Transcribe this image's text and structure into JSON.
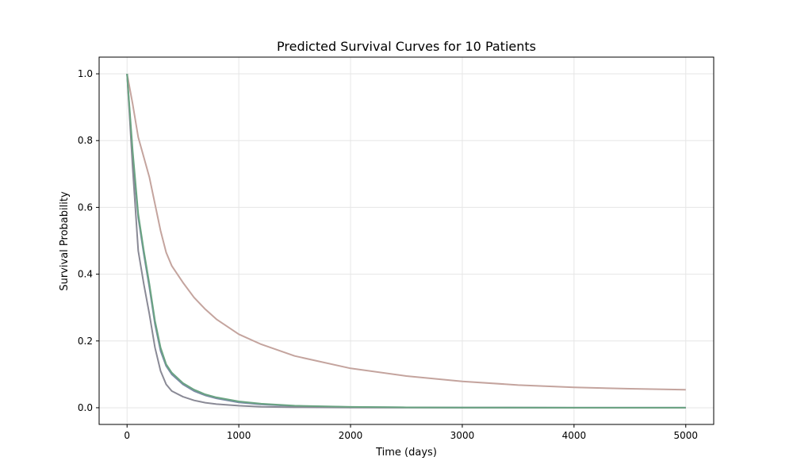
{
  "chart_data": {
    "type": "line",
    "title": "Predicted Survival Curves for 10 Patients",
    "xlabel": "Time (days)",
    "ylabel": "Survival Probability",
    "xlim": [
      -250,
      5250
    ],
    "ylim": [
      -0.05,
      1.05
    ],
    "xticks": [
      0,
      1000,
      2000,
      3000,
      4000,
      5000
    ],
    "yticks": [
      0.0,
      0.2,
      0.4,
      0.6,
      0.8,
      1.0
    ],
    "xtick_labels": [
      "0",
      "1000",
      "2000",
      "3000",
      "4000",
      "5000"
    ],
    "ytick_labels": [
      "0.0",
      "0.2",
      "0.4",
      "0.6",
      "0.8",
      "1.0"
    ],
    "grid": true,
    "legend": "none",
    "series": [
      {
        "color": "#c4a49e",
        "x": [
          0,
          50,
          100,
          150,
          200,
          250,
          300,
          350,
          400,
          500,
          600,
          700,
          800,
          1000,
          1200,
          1500,
          2000,
          2500,
          3000,
          3500,
          4000,
          4500,
          5000
        ],
        "y": [
          1.0,
          0.91,
          0.81,
          0.75,
          0.69,
          0.61,
          0.53,
          0.465,
          0.425,
          0.375,
          0.33,
          0.295,
          0.265,
          0.22,
          0.19,
          0.155,
          0.118,
          0.095,
          0.079,
          0.068,
          0.061,
          0.057,
          0.054
        ]
      },
      {
        "color": "#7a8aa6",
        "x": [
          0,
          50,
          100,
          150,
          200,
          250,
          300,
          350,
          400,
          500,
          600,
          700,
          800,
          1000,
          1200,
          1500,
          2000,
          2500,
          3000,
          4000,
          5000
        ],
        "y": [
          1.0,
          0.75,
          0.57,
          0.46,
          0.36,
          0.25,
          0.17,
          0.125,
          0.1,
          0.07,
          0.05,
          0.037,
          0.028,
          0.016,
          0.01,
          0.005,
          0.002,
          0.001,
          0.0005,
          0.0002,
          0.0001
        ]
      },
      {
        "color": "#8a8a96",
        "x": [
          0,
          50,
          100,
          150,
          200,
          250,
          300,
          350,
          400,
          500,
          600,
          700,
          800,
          1000,
          1200,
          1500,
          2000,
          2500,
          3000,
          4000,
          5000
        ],
        "y": [
          1.0,
          0.72,
          0.47,
          0.37,
          0.28,
          0.18,
          0.11,
          0.07,
          0.05,
          0.033,
          0.022,
          0.015,
          0.011,
          0.006,
          0.003,
          0.0015,
          0.0005,
          0.0002,
          0.0001,
          0.0,
          0.0
        ]
      },
      {
        "color": "#6aa482",
        "x": [
          0,
          50,
          100,
          150,
          200,
          250,
          300,
          350,
          400,
          500,
          600,
          700,
          800,
          1000,
          1200,
          1500,
          2000,
          2500,
          3000,
          4000,
          5000
        ],
        "y": [
          1.0,
          0.77,
          0.58,
          0.47,
          0.37,
          0.26,
          0.18,
          0.13,
          0.105,
          0.074,
          0.054,
          0.04,
          0.031,
          0.019,
          0.012,
          0.006,
          0.0025,
          0.0012,
          0.0006,
          0.0002,
          0.0001
        ]
      }
    ]
  }
}
